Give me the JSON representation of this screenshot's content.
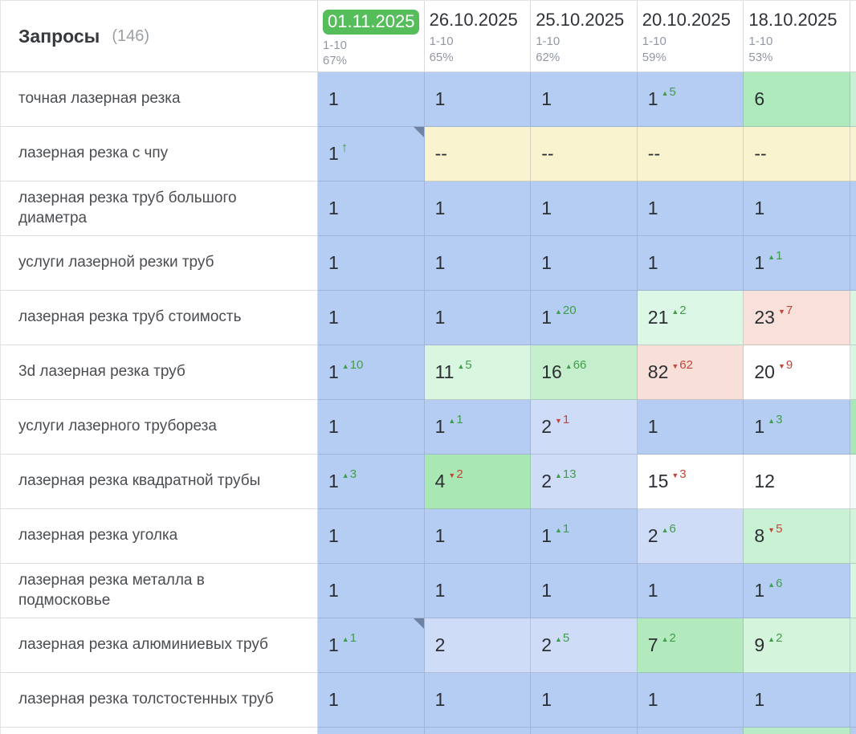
{
  "table": {
    "title": "Запросы",
    "count": "(146)",
    "accent_colors": {
      "badge_green": "#56bd5b",
      "up_green": "#3f9e4b",
      "down_red": "#c2453a",
      "note_corner": "#6e82a4"
    },
    "columns": [
      {
        "date": "01.11.2025",
        "range": "1-10",
        "percent": "67%",
        "highlighted": true
      },
      {
        "date": "26.10.2025",
        "range": "1-10",
        "percent": "65%",
        "highlighted": false
      },
      {
        "date": "25.10.2025",
        "range": "1-10",
        "percent": "62%",
        "highlighted": false
      },
      {
        "date": "20.10.2025",
        "range": "1-10",
        "percent": "59%",
        "highlighted": false
      },
      {
        "date": "18.10.2025",
        "range": "1-10",
        "percent": "53%",
        "highlighted": false
      }
    ],
    "rows": [
      {
        "query": "точная лазерная резка",
        "cells": [
          {
            "value": "1",
            "bg": "#b5cdf2"
          },
          {
            "value": "1",
            "bg": "#b5cdf2"
          },
          {
            "value": "1",
            "bg": "#b5cdf2"
          },
          {
            "value": "1",
            "change": "5",
            "dir": "up",
            "bg": "#b5cdf2"
          },
          {
            "value": "6",
            "bg": "#aeeabc"
          }
        ],
        "sliver": "#c9f1d6"
      },
      {
        "query": "лазерная резка с чпу",
        "cells": [
          {
            "value": "1",
            "arrow": true,
            "corner": true,
            "bg": "#b5cdf2"
          },
          {
            "value": "--",
            "bg": "#faf3cf"
          },
          {
            "value": "--",
            "bg": "#faf3cf"
          },
          {
            "value": "--",
            "bg": "#faf3cf"
          },
          {
            "value": "--",
            "bg": "#faf3cf"
          }
        ],
        "sliver": "#faf3cf"
      },
      {
        "query": "лазерная резка труб большого диаметра",
        "cells": [
          {
            "value": "1",
            "bg": "#b5cdf2"
          },
          {
            "value": "1",
            "bg": "#b5cdf2"
          },
          {
            "value": "1",
            "bg": "#b5cdf2"
          },
          {
            "value": "1",
            "bg": "#b5cdf2"
          },
          {
            "value": "1",
            "bg": "#b5cdf2"
          }
        ],
        "sliver": "#b5cdf2"
      },
      {
        "query": "услуги лазерной резки труб",
        "cells": [
          {
            "value": "1",
            "bg": "#b5cdf2"
          },
          {
            "value": "1",
            "bg": "#b5cdf2"
          },
          {
            "value": "1",
            "bg": "#b5cdf2"
          },
          {
            "value": "1",
            "bg": "#b5cdf2"
          },
          {
            "value": "1",
            "change": "1",
            "dir": "up",
            "bg": "#b5cdf2"
          }
        ],
        "sliver": "#b5cdf2"
      },
      {
        "query": "лазерная резка труб стоимость",
        "cells": [
          {
            "value": "1",
            "bg": "#b5cdf2"
          },
          {
            "value": "1",
            "bg": "#b5cdf2"
          },
          {
            "value": "1",
            "change": "20",
            "dir": "up",
            "bg": "#b5cdf2"
          },
          {
            "value": "21",
            "change": "2",
            "dir": "up",
            "bg": "#dcf7e5"
          },
          {
            "value": "23",
            "change": "7",
            "dir": "down",
            "bg": "#f8e1da"
          }
        ],
        "sliver": "#d9f6e2"
      },
      {
        "query": "3d лазерная резка труб",
        "cells": [
          {
            "value": "1",
            "change": "10",
            "dir": "up",
            "bg": "#b5cdf2"
          },
          {
            "value": "11",
            "change": "5",
            "dir": "up",
            "bg": "#d9f6e0"
          },
          {
            "value": "16",
            "change": "66",
            "dir": "up",
            "bg": "#c5efcc"
          },
          {
            "value": "82",
            "change": "62",
            "dir": "down",
            "bg": "#f8e0d9"
          },
          {
            "value": "20",
            "change": "9",
            "dir": "down",
            "bg": "#ffffff"
          }
        ],
        "sliver": "#d9f6e2"
      },
      {
        "query": "услуги лазерного трубореза",
        "cells": [
          {
            "value": "1",
            "bg": "#b5cdf2"
          },
          {
            "value": "1",
            "change": "1",
            "dir": "up",
            "bg": "#b5cdf2"
          },
          {
            "value": "2",
            "change": "1",
            "dir": "down",
            "bg": "#cfdcf7"
          },
          {
            "value": "1",
            "bg": "#b5cdf2"
          },
          {
            "value": "1",
            "change": "3",
            "dir": "up",
            "bg": "#b5cdf2"
          }
        ],
        "sliver": "#a9e8b6"
      },
      {
        "query": "лазерная резка квадратной трубы",
        "cells": [
          {
            "value": "1",
            "change": "3",
            "dir": "up",
            "bg": "#b5cdf2"
          },
          {
            "value": "4",
            "change": "2",
            "dir": "down",
            "bg": "#a9e8b4"
          },
          {
            "value": "2",
            "change": "13",
            "dir": "up",
            "bg": "#cfdcf7"
          },
          {
            "value": "15",
            "change": "3",
            "dir": "down",
            "bg": "#ffffff"
          },
          {
            "value": "12",
            "bg": "#ffffff"
          }
        ],
        "sliver": "#f2fbf5"
      },
      {
        "query": "лазерная резка уголка",
        "cells": [
          {
            "value": "1",
            "bg": "#b5cdf2"
          },
          {
            "value": "1",
            "bg": "#b5cdf2"
          },
          {
            "value": "1",
            "change": "1",
            "dir": "up",
            "bg": "#b5cdf2"
          },
          {
            "value": "2",
            "change": "6",
            "dir": "up",
            "bg": "#cfdcf7"
          },
          {
            "value": "8",
            "change": "5",
            "dir": "down",
            "bg": "#c9f1d4"
          }
        ],
        "sliver": "#d5f4dc"
      },
      {
        "query": "лазерная резка металла в подмосковье",
        "cells": [
          {
            "value": "1",
            "bg": "#b5cdf2"
          },
          {
            "value": "1",
            "bg": "#b5cdf2"
          },
          {
            "value": "1",
            "bg": "#b5cdf2"
          },
          {
            "value": "1",
            "bg": "#b5cdf2"
          },
          {
            "value": "1",
            "change": "6",
            "dir": "up",
            "bg": "#b5cdf2"
          }
        ],
        "sliver": "#d9f6e0"
      },
      {
        "query": "лазерная резка алюминиевых труб",
        "cells": [
          {
            "value": "1",
            "change": "1",
            "dir": "up",
            "corner": true,
            "bg": "#b5cdf2"
          },
          {
            "value": "2",
            "bg": "#cfdcf7"
          },
          {
            "value": "2",
            "change": "5",
            "dir": "up",
            "bg": "#cfdcf7"
          },
          {
            "value": "7",
            "change": "2",
            "dir": "up",
            "bg": "#b2e9bd"
          },
          {
            "value": "9",
            "change": "2",
            "dir": "up",
            "bg": "#d5f4dc"
          }
        ],
        "sliver": "#d5f4dc"
      },
      {
        "query": "лазерная резка толстостенных труб",
        "cells": [
          {
            "value": "1",
            "bg": "#b5cdf2"
          },
          {
            "value": "1",
            "bg": "#b5cdf2"
          },
          {
            "value": "1",
            "bg": "#b5cdf2"
          },
          {
            "value": "1",
            "bg": "#b5cdf2"
          },
          {
            "value": "1",
            "bg": "#b5cdf2"
          }
        ],
        "sliver": "#b5cdf2"
      }
    ],
    "partial_row": {
      "cells": [
        "#b5cdf2",
        "#b5cdf2",
        "#b5cdf2",
        "#b5cdf2",
        "#b9ecc4"
      ],
      "sliver": "#b5cdf2"
    }
  }
}
